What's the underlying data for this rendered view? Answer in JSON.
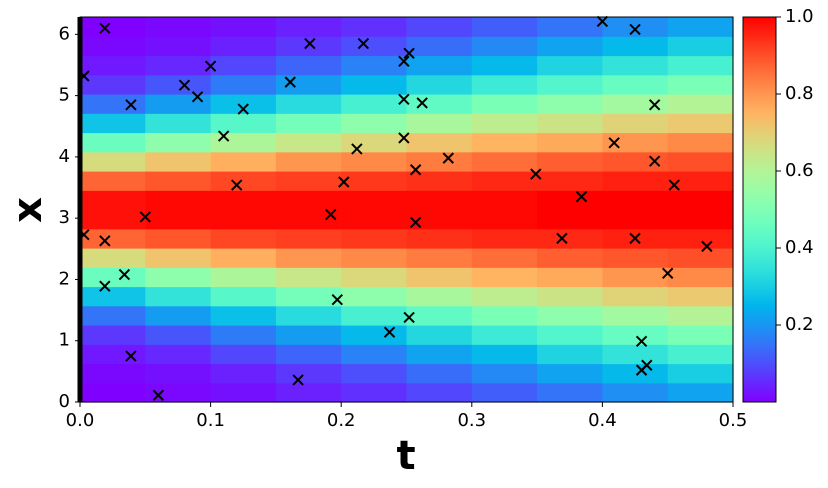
{
  "chart_data": {
    "type": "heatmap",
    "xlabel": "t",
    "ylabel": "x",
    "xlim": [
      0,
      0.5
    ],
    "ylim": [
      0,
      6.283
    ],
    "xticks": [
      {
        "value": 0,
        "label": "0.0"
      },
      0.1,
      0.2,
      0.3,
      0.4,
      0.5
    ],
    "yticks": [
      0,
      1,
      2,
      3,
      4,
      5,
      6
    ],
    "z": [
      [
        0.0,
        0.01,
        0.03,
        0.07,
        0.15,
        0.28,
        0.46,
        0.67,
        0.87,
        0.98,
        0.98,
        0.87,
        0.67,
        0.46,
        0.28,
        0.15,
        0.07,
        0.03,
        0.01,
        0.0
      ],
      [
        0.01,
        0.02,
        0.05,
        0.11,
        0.21,
        0.35,
        0.53,
        0.72,
        0.89,
        0.99,
        0.99,
        0.89,
        0.72,
        0.53,
        0.35,
        0.21,
        0.11,
        0.05,
        0.02,
        0.01
      ],
      [
        0.02,
        0.04,
        0.09,
        0.16,
        0.27,
        0.42,
        0.59,
        0.76,
        0.91,
        0.99,
        0.99,
        0.91,
        0.76,
        0.59,
        0.42,
        0.27,
        0.16,
        0.09,
        0.04,
        0.02
      ],
      [
        0.04,
        0.07,
        0.13,
        0.21,
        0.33,
        0.48,
        0.64,
        0.8,
        0.92,
        0.99,
        0.99,
        0.92,
        0.8,
        0.64,
        0.48,
        0.33,
        0.21,
        0.13,
        0.07,
        0.04
      ],
      [
        0.06,
        0.1,
        0.17,
        0.26,
        0.39,
        0.53,
        0.68,
        0.82,
        0.93,
        0.99,
        0.99,
        0.93,
        0.82,
        0.68,
        0.53,
        0.39,
        0.26,
        0.17,
        0.1,
        0.06
      ],
      [
        0.09,
        0.14,
        0.22,
        0.32,
        0.44,
        0.58,
        0.72,
        0.84,
        0.94,
        0.99,
        0.99,
        0.94,
        0.84,
        0.72,
        0.58,
        0.44,
        0.32,
        0.22,
        0.14,
        0.09
      ],
      [
        0.12,
        0.18,
        0.26,
        0.37,
        0.49,
        0.62,
        0.75,
        0.86,
        0.95,
        0.99,
        0.99,
        0.95,
        0.86,
        0.75,
        0.62,
        0.49,
        0.37,
        0.26,
        0.18,
        0.12
      ],
      [
        0.15,
        0.22,
        0.31,
        0.41,
        0.53,
        0.65,
        0.77,
        0.88,
        0.95,
        1.0,
        1.0,
        0.95,
        0.88,
        0.77,
        0.65,
        0.53,
        0.41,
        0.31,
        0.22,
        0.15
      ],
      [
        0.19,
        0.26,
        0.35,
        0.45,
        0.57,
        0.69,
        0.8,
        0.89,
        0.96,
        1.0,
        1.0,
        0.96,
        0.89,
        0.8,
        0.69,
        0.57,
        0.45,
        0.35,
        0.26,
        0.19
      ],
      [
        0.22,
        0.3,
        0.39,
        0.49,
        0.6,
        0.71,
        0.82,
        0.9,
        0.96,
        1.0,
        1.0,
        0.96,
        0.9,
        0.82,
        0.71,
        0.6,
        0.49,
        0.39,
        0.3,
        0.22
      ]
    ],
    "colormap": "rainbow",
    "clim": [
      0,
      1
    ],
    "cticks": [
      0.2,
      0.4,
      0.6,
      0.8,
      {
        "value": 1,
        "label": "1.0"
      }
    ],
    "points": {
      "color": "#000000",
      "x": [
        0.003,
        0.019,
        0.039,
        0.08,
        0.09,
        0.1,
        0.11,
        0.125,
        0.12,
        0.161,
        0.176,
        0.217,
        0.252,
        0.248,
        0.248,
        0.262,
        0.248,
        0.212,
        0.202,
        0.192,
        0.257,
        0.257,
        0.282,
        0.05,
        0.003,
        0.019,
        0.034,
        0.019,
        0.039,
        0.06,
        0.167,
        0.197,
        0.237,
        0.252,
        0.349,
        0.369,
        0.384,
        0.4,
        0.425,
        0.409,
        0.44,
        0.44,
        0.455,
        0.425,
        0.45,
        0.48,
        0.43,
        0.43,
        0.434
      ],
      "y": [
        5.32,
        6.1,
        4.85,
        5.17,
        4.98,
        5.48,
        4.34,
        4.78,
        3.54,
        5.22,
        5.85,
        5.85,
        5.69,
        5.56,
        4.94,
        4.88,
        4.31,
        4.13,
        3.59,
        3.06,
        3.79,
        2.93,
        3.98,
        3.02,
        2.73,
        2.63,
        2.08,
        1.89,
        0.75,
        0.11,
        0.36,
        1.67,
        1.14,
        1.38,
        3.72,
        2.67,
        3.35,
        6.21,
        6.08,
        4.23,
        4.85,
        3.93,
        3.54,
        2.67,
        2.1,
        2.54,
        0.99,
        0.52,
        0.6
      ]
    }
  }
}
